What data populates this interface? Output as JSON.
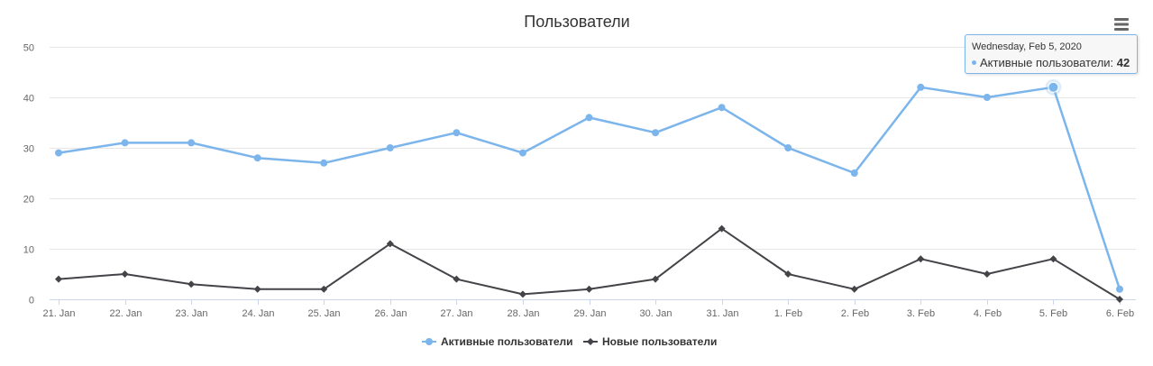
{
  "chart_data": {
    "type": "line",
    "title": "Пользователи",
    "categories": [
      "21. Jan",
      "22. Jan",
      "23. Jan",
      "24. Jan",
      "25. Jan",
      "26. Jan",
      "27. Jan",
      "28. Jan",
      "29. Jan",
      "30. Jan",
      "31. Jan",
      "1. Feb",
      "2. Feb",
      "3. Feb",
      "4. Feb",
      "5. Feb",
      "6. Feb"
    ],
    "ylim": [
      0,
      50
    ],
    "yticks": [
      0,
      10,
      20,
      30,
      40,
      50
    ],
    "grid": true,
    "legend_position": "bottom-center",
    "series": [
      {
        "name": "Активные пользователи",
        "color": "#7cb5ec",
        "marker": "circle",
        "values": [
          29,
          31,
          31,
          28,
          27,
          30,
          33,
          29,
          36,
          33,
          38,
          30,
          25,
          42,
          40,
          42,
          2
        ]
      },
      {
        "name": "Новые пользователи",
        "color": "#434348",
        "marker": "diamond",
        "values": [
          4,
          5,
          3,
          2,
          2,
          11,
          4,
          1,
          2,
          4,
          14,
          5,
          2,
          8,
          5,
          8,
          0
        ]
      }
    ],
    "tooltip": {
      "date": "Wednesday, Feb 5, 2020",
      "series_label": "Активные пользователи",
      "value": "42",
      "point_index": 15,
      "series_index": 0
    }
  },
  "menu": {
    "icon": "hamburger-menu-icon"
  }
}
